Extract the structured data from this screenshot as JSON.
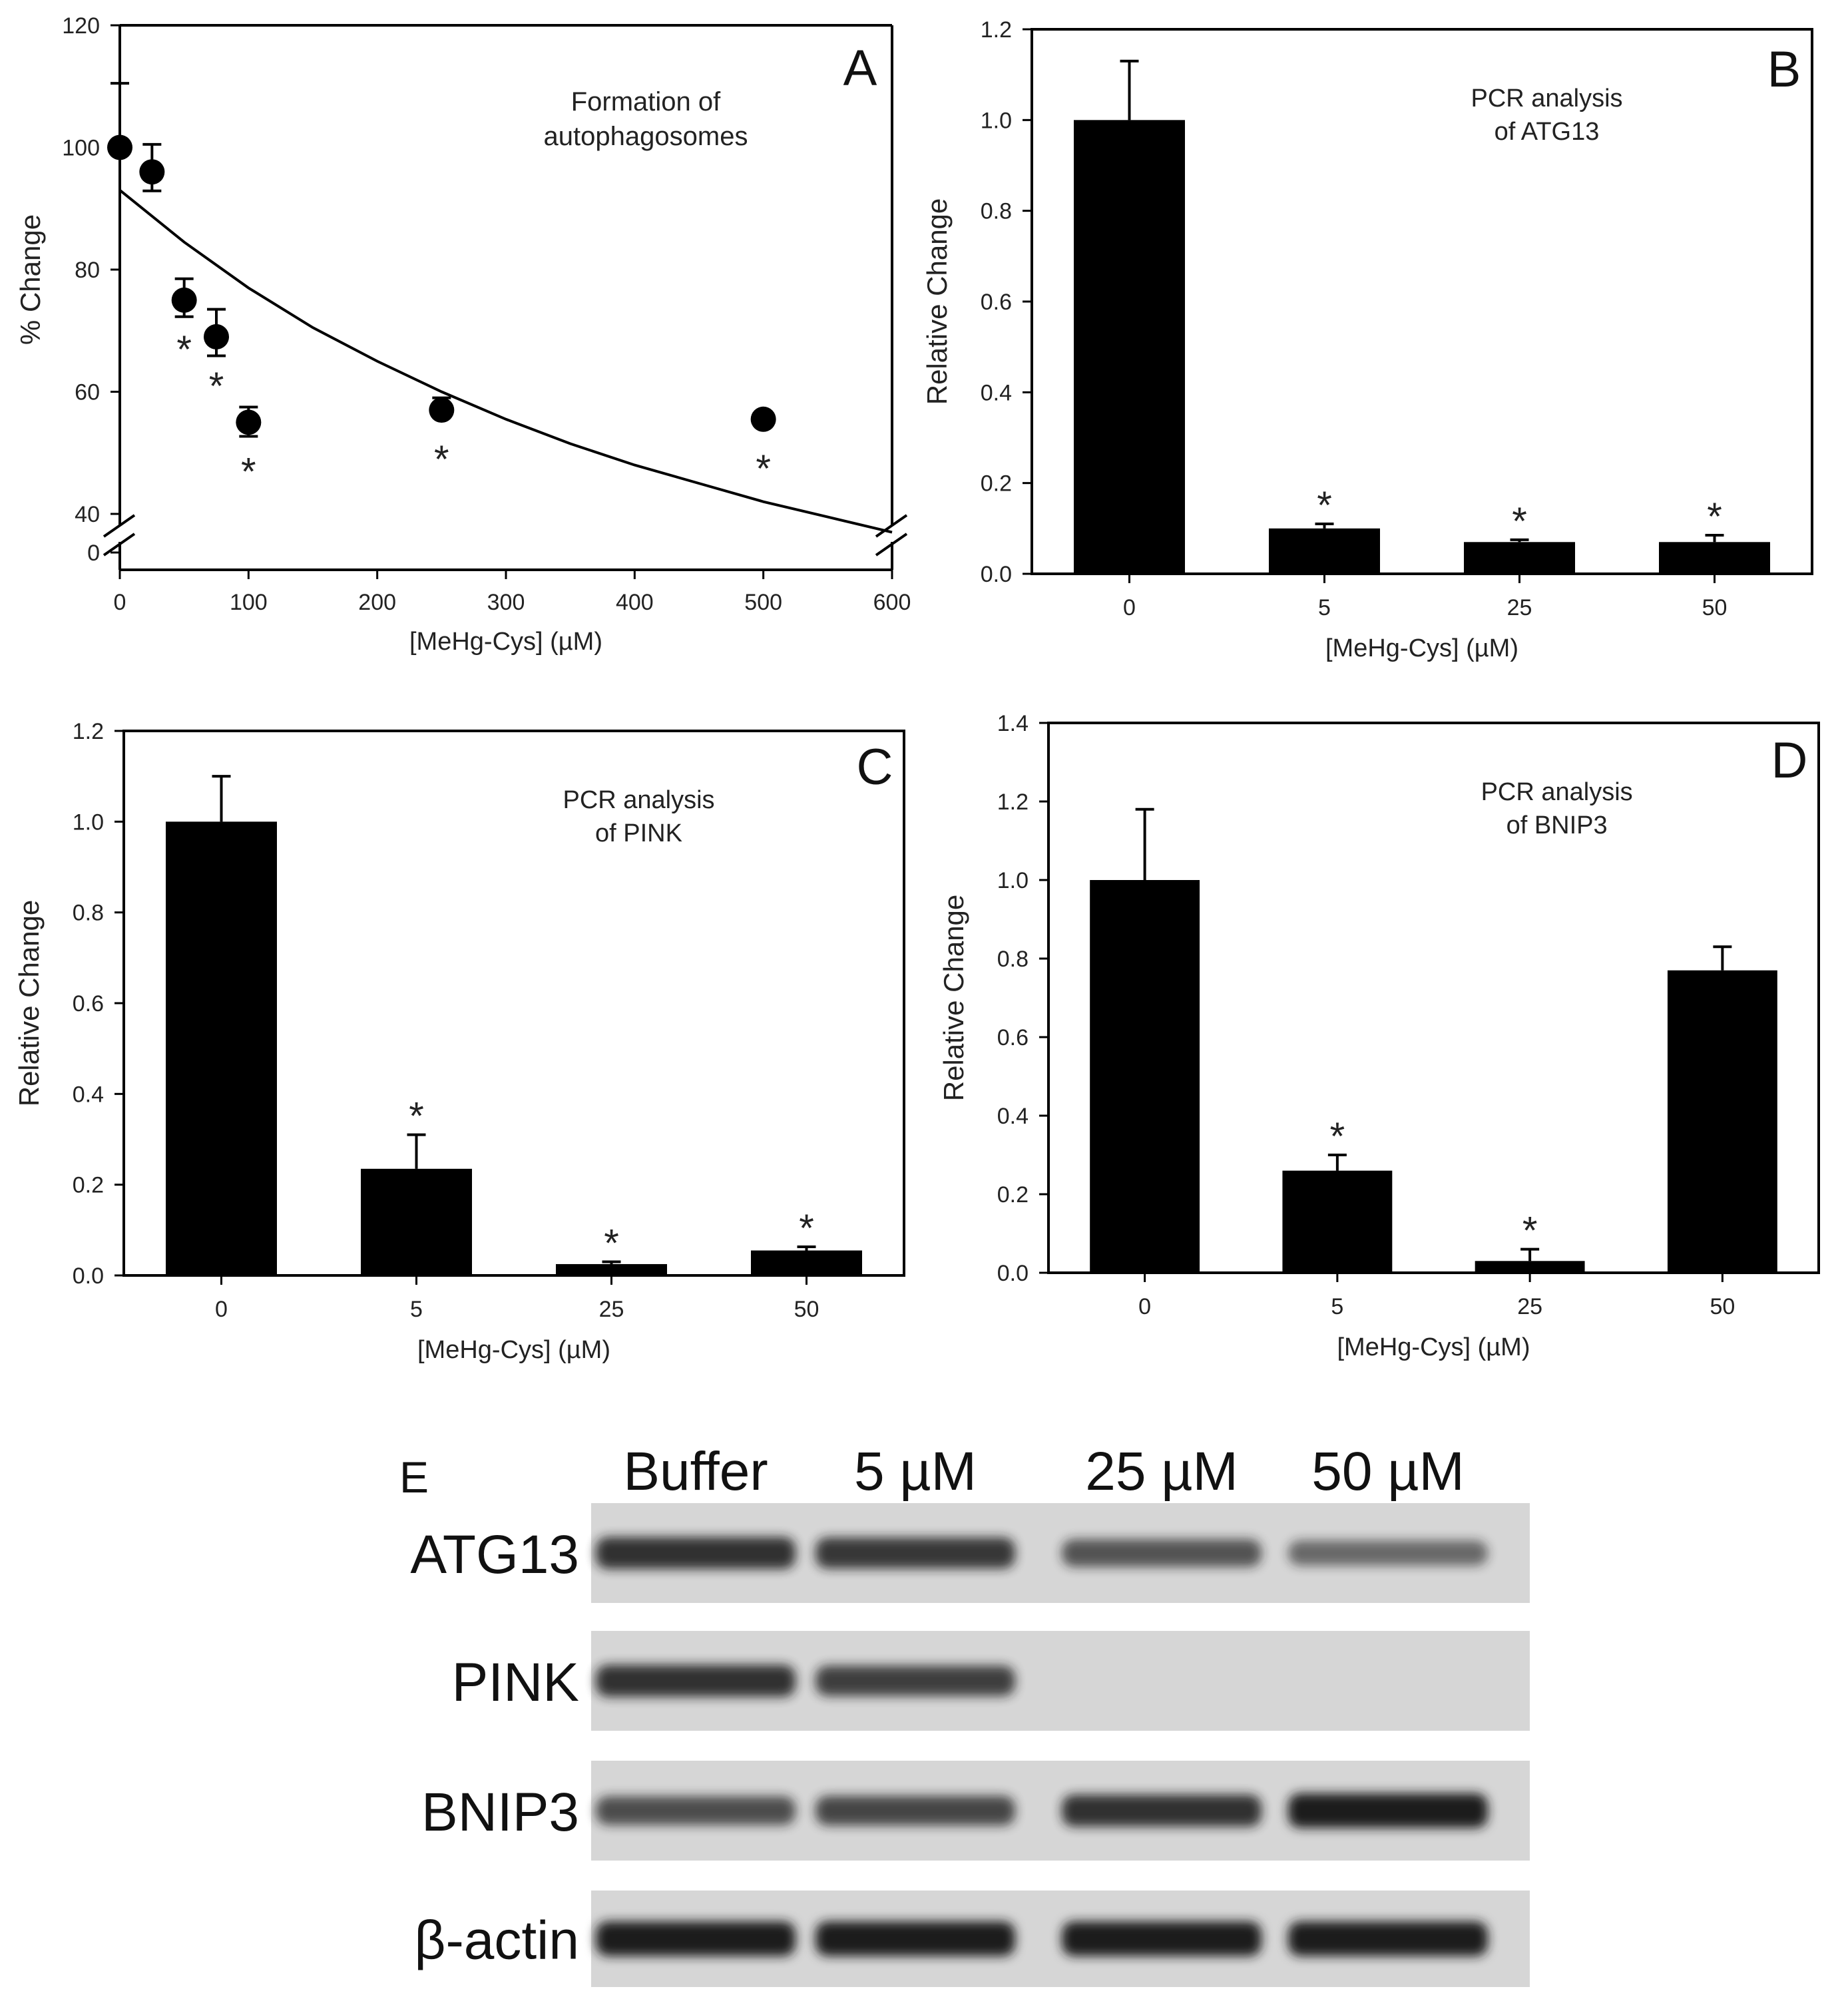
{
  "chart_data": [
    {
      "panel": "A",
      "type": "scatter",
      "annotation": [
        "Formation of",
        "autophagosomes"
      ],
      "xlabel": "[MeHg-Cys] (µM)",
      "ylabel": "% Change",
      "xlim": [
        0,
        600
      ],
      "ylim": [
        40,
        120
      ],
      "axis_break": "y",
      "x_ticks": [
        0,
        100,
        200,
        300,
        400,
        500,
        600
      ],
      "y_ticks": [
        0,
        40,
        60,
        80,
        100,
        120
      ],
      "x": [
        0,
        25,
        50,
        75,
        100,
        250,
        500
      ],
      "y": [
        100,
        96,
        75,
        69,
        55,
        57,
        55.5
      ],
      "error": [
        10.5,
        4.5,
        3.5,
        4.5,
        2.5,
        2.0,
        1.0
      ],
      "significant": [
        false,
        false,
        true,
        true,
        true,
        true,
        true
      ],
      "significance_mark": "*",
      "fit_curve": {
        "type": "exponential decay",
        "x": [
          0,
          50,
          100,
          150,
          200,
          250,
          300,
          350,
          400,
          450,
          500,
          550,
          600
        ],
        "y": [
          93,
          84.5,
          77,
          70.5,
          65,
          60,
          55.5,
          51.5,
          48,
          45,
          42,
          39.5,
          37
        ]
      }
    },
    {
      "panel": "B",
      "type": "bar",
      "annotation": [
        "PCR analysis",
        "of ATG13"
      ],
      "categories": [
        "0",
        "5",
        "25",
        "50"
      ],
      "values": [
        1.0,
        0.1,
        0.07,
        0.07
      ],
      "error": [
        0.13,
        0.01,
        0.005,
        0.015
      ],
      "significant": [
        false,
        true,
        true,
        true
      ],
      "significance_mark": "*",
      "xlabel": "[MeHg-Cys] (µM)",
      "ylabel": "Relative Change",
      "ylim": [
        0,
        1.2
      ],
      "y_ticks": [
        0.0,
        0.2,
        0.4,
        0.6,
        0.8,
        1.0,
        1.2
      ]
    },
    {
      "panel": "C",
      "type": "bar",
      "annotation": [
        "PCR analysis",
        "of PINK"
      ],
      "categories": [
        "0",
        "5",
        "25",
        "50"
      ],
      "values": [
        1.0,
        0.235,
        0.025,
        0.055
      ],
      "error": [
        0.1,
        0.075,
        0.005,
        0.008
      ],
      "significant": [
        false,
        true,
        true,
        true
      ],
      "significance_mark": "*",
      "xlabel": "[MeHg-Cys] (µM)",
      "ylabel": "Relative Change",
      "ylim": [
        0,
        1.2
      ],
      "y_ticks": [
        0.0,
        0.2,
        0.4,
        0.6,
        0.8,
        1.0,
        1.2
      ]
    },
    {
      "panel": "D",
      "type": "bar",
      "annotation": [
        "PCR analysis",
        "of BNIP3"
      ],
      "categories": [
        "0",
        "5",
        "25",
        "50"
      ],
      "values": [
        1.0,
        0.26,
        0.03,
        0.77
      ],
      "error": [
        0.18,
        0.04,
        0.03,
        0.06
      ],
      "significant": [
        false,
        true,
        true,
        false
      ],
      "significance_mark": "*",
      "xlabel": "[MeHg-Cys] (µM)",
      "ylabel": "Relative Change",
      "ylim": [
        0,
        1.4
      ],
      "y_ticks": [
        0.0,
        0.2,
        0.4,
        0.6,
        0.8,
        1.0,
        1.2,
        1.4
      ]
    }
  ],
  "blot": {
    "panel": "E",
    "lanes": [
      "Buffer",
      "5 µM",
      "25 µM",
      "50 µM"
    ],
    "rows": [
      {
        "label": "ATG13",
        "intensity": [
          0.85,
          0.8,
          0.6,
          0.45
        ]
      },
      {
        "label": "PINK",
        "intensity": [
          0.85,
          0.75,
          0.0,
          0.0
        ]
      },
      {
        "label": "BNIP3",
        "intensity": [
          0.65,
          0.7,
          0.85,
          1.0
        ]
      },
      {
        "label": "β-actin",
        "intensity": [
          1.0,
          1.0,
          1.0,
          1.0
        ]
      }
    ]
  },
  "colors": {
    "ink": "#000000",
    "text": "#222222",
    "blot_background": "#d6d6d6",
    "band": "#1a1a1a"
  }
}
